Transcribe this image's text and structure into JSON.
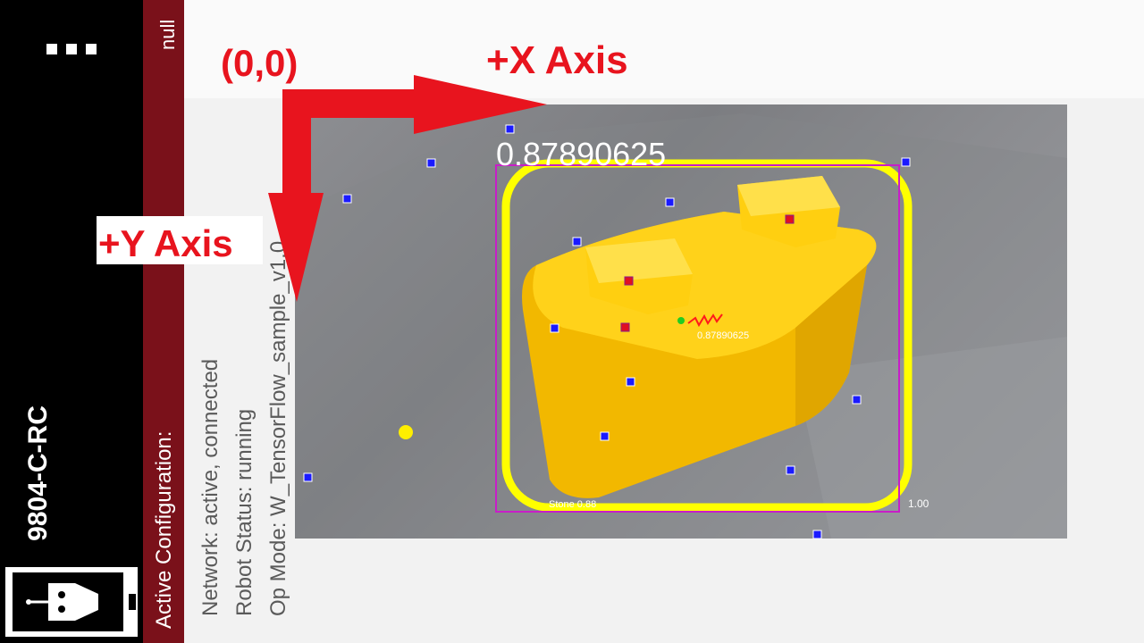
{
  "left_panel": {
    "menu_icon": "overflow-menu-icon",
    "device_name": "9804-C-RC",
    "logo_icon": "robot-controller-logo-icon"
  },
  "header": {
    "null_label": "null",
    "active_configuration": "Active Configuration:"
  },
  "status": {
    "network": "Network: active, connected",
    "robot": "Robot Status: running",
    "op_mode": "Op Mode: W_TensorFlow_sample_v1.0"
  },
  "annotations": {
    "origin": "(0,0)",
    "x_axis": "+X Axis",
    "y_axis": "+Y Axis",
    "arrow_color": "#e8141e"
  },
  "detection": {
    "confidence_large": "0.87890625",
    "confidence_small": "0.87890625",
    "label": "Stone 0.88",
    "scale": "1.00",
    "box_color": "#c81ec8",
    "ring_color": "#ffff00"
  },
  "colors": {
    "maroon": "#7a111a",
    "left_strip": "#000000"
  }
}
